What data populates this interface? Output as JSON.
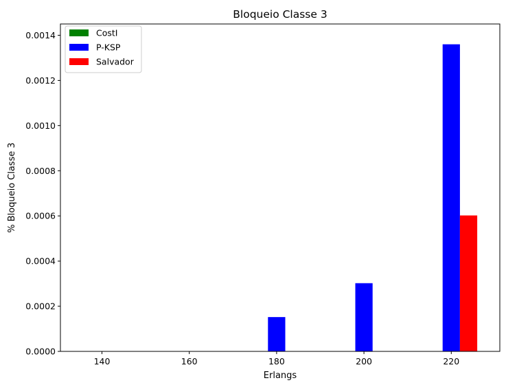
{
  "chart_data": {
    "type": "bar",
    "title": "Bloqueio Classe 3",
    "xlabel": "Erlangs",
    "ylabel": "% Bloqueio Classe 3",
    "categories": [
      "140",
      "160",
      "180",
      "200",
      "220"
    ],
    "series": [
      {
        "name": "CostI",
        "color": "#008000",
        "values": [
          0,
          0,
          0,
          0,
          0
        ]
      },
      {
        "name": "P-KSP",
        "color": "#0000ff",
        "values": [
          0,
          0,
          0.000152,
          0.000302,
          0.00136
        ]
      },
      {
        "name": "Salvador",
        "color": "#ff0000",
        "values": [
          0,
          0,
          0,
          0,
          0.000602
        ]
      }
    ],
    "ylim": [
      0,
      0.00145
    ],
    "yticks": [
      "0.0000",
      "0.0002",
      "0.0004",
      "0.0006",
      "0.0008",
      "0.0010",
      "0.0012",
      "0.0014"
    ],
    "ytick_values": [
      0,
      0.0002,
      0.0004,
      0.0006,
      0.0008,
      0.001,
      0.0012,
      0.0014
    ],
    "grid": false,
    "legend": "top-left"
  }
}
